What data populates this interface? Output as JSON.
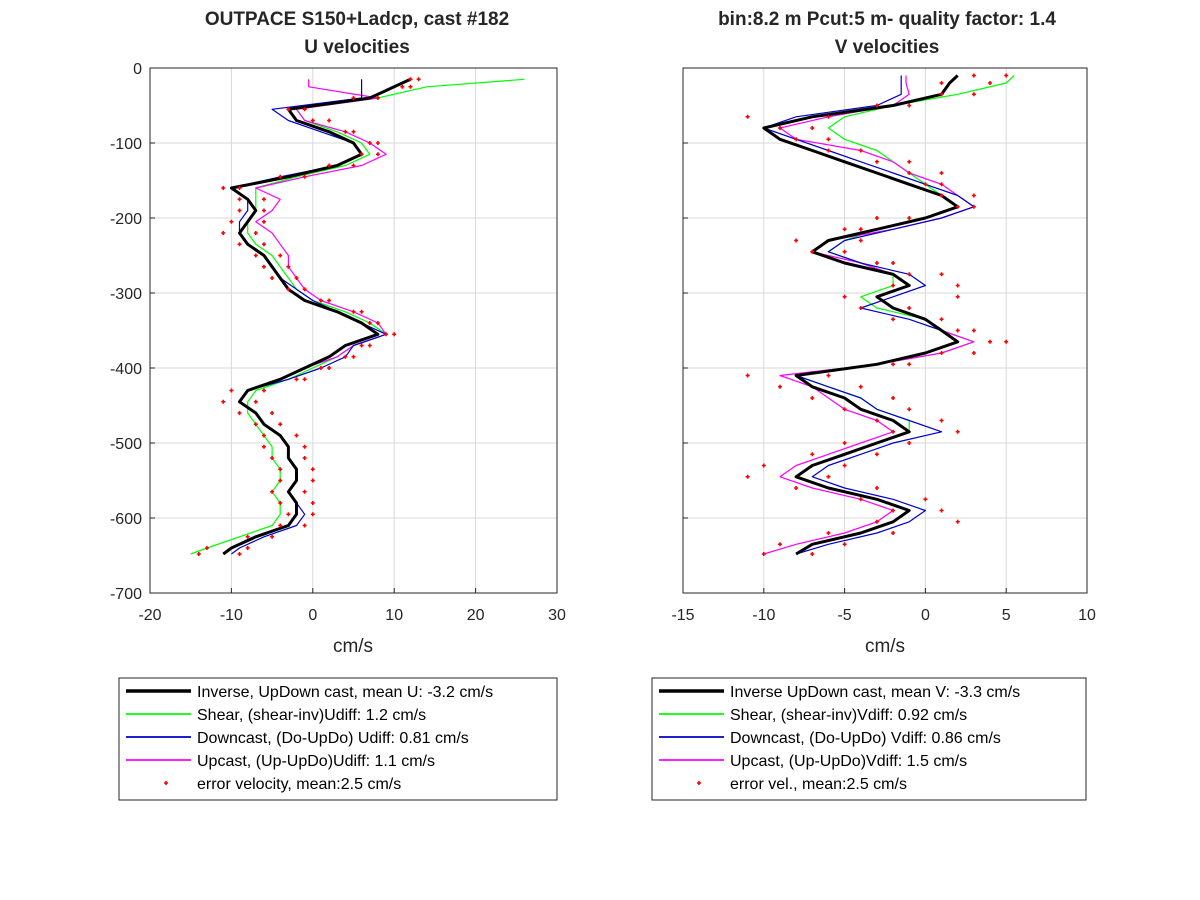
{
  "colors": {
    "inverse": "#000000",
    "shear": "#00ff00",
    "downcast": "#0000cc",
    "upcast": "#ff00ff",
    "error": "#ff0000",
    "grid": "#d9d9d9"
  },
  "chart_data": [
    {
      "type": "line",
      "title": [
        "OUTPACE S150+Ladcp, cast #182",
        "U velocities"
      ],
      "xlabel": "cm/s",
      "ylabel": "",
      "xlim": [
        -20,
        30
      ],
      "ylim": [
        -700,
        0
      ],
      "xticks": [
        "-20",
        "-10",
        "0",
        "10",
        "20",
        "30"
      ],
      "yticks": [
        "0",
        "-100",
        "-200",
        "-300",
        "-400",
        "-500",
        "-600",
        "-700"
      ],
      "grid": true,
      "legend_position": "below",
      "legend": [
        "Inverse, UpDown cast, mean U:  -3.2 cm/s",
        "Shear, (shear-inv)Udiff:  1.2 cm/s",
        "Downcast, (Do-UpDo) Udiff:  0.81 cm/s",
        "Upcast, (Up-UpDo)Udiff:  1.1 cm/s",
        "error velocity, mean:2.5 cm/s"
      ],
      "depth": [
        -15,
        -25,
        -40,
        -55,
        -70,
        -85,
        -100,
        -115,
        -130,
        -145,
        -160,
        -175,
        -190,
        -205,
        -220,
        -235,
        -250,
        -265,
        -280,
        -295,
        -310,
        -325,
        -340,
        -355,
        -370,
        -385,
        -400,
        -415,
        -430,
        -445,
        -460,
        -475,
        -490,
        -505,
        -520,
        -535,
        -550,
        -565,
        -580,
        -595,
        -610,
        -625,
        -640,
        -648
      ],
      "series": [
        {
          "key": "inverse",
          "values": [
            12,
            10,
            7,
            -3,
            -2,
            2,
            5,
            6,
            3,
            -3,
            -10,
            -8,
            -7,
            -8,
            -9,
            -8,
            -6,
            -5,
            -4,
            -3,
            -1,
            3,
            6,
            8,
            4,
            2,
            -1,
            -4,
            -8,
            -9,
            -7,
            -6,
            -4,
            -3,
            -3,
            -2,
            -2,
            -3,
            -2,
            -2,
            -3,
            -7,
            -10,
            -11
          ]
        },
        {
          "key": "shear",
          "values": [
            26,
            14,
            8,
            -2,
            -1,
            3,
            6,
            7,
            4,
            -2,
            -7,
            -7,
            -7,
            -8,
            -8,
            -7,
            -5,
            -4,
            -3,
            -2,
            0,
            4,
            7,
            9,
            5,
            3,
            0,
            -3,
            -7,
            -8,
            -8,
            -7,
            -6,
            -5,
            -5,
            -4,
            -4,
            -5,
            -4,
            -4,
            -5,
            -9,
            -13,
            -15
          ]
        },
        {
          "key": "downcast",
          "values": [
            6,
            6,
            6,
            -5,
            -3,
            1,
            5,
            6,
            3,
            -4,
            -10,
            -8,
            -8,
            -9,
            -9,
            -8,
            -6,
            -5,
            -4,
            -2,
            0,
            3,
            6,
            9,
            5,
            4,
            1,
            -3,
            -8,
            -9,
            -7,
            -6,
            -4,
            -3,
            -3,
            -2,
            -2,
            -3,
            -2,
            -1,
            -2,
            -6,
            -9,
            -10
          ]
        },
        {
          "key": "upcast",
          "values": [
            -0.5,
            -0.5,
            8,
            -2,
            -1,
            4,
            7,
            9,
            6,
            -1,
            -7,
            -4,
            -5,
            -7,
            -5,
            -4,
            -3,
            -3,
            -2,
            -1,
            1,
            5,
            8,
            9,
            5,
            3,
            -1,
            -4,
            -8,
            -9,
            -7,
            -6,
            -4,
            -3,
            -3,
            -2,
            -2,
            -3,
            -2,
            -2,
            -3,
            -7,
            -10,
            -11
          ]
        },
        {
          "key": "error",
          "values": [
            12,
            11,
            5,
            -3,
            0,
            4,
            7,
            8,
            5,
            -1,
            -11,
            -9,
            -9,
            -10,
            -11,
            -9,
            -7,
            -6,
            -5,
            -3,
            1,
            5,
            8,
            10,
            6,
            4,
            1,
            -2,
            -10,
            -11,
            -9,
            -7,
            -6,
            -6,
            -5,
            -4,
            -4,
            -5,
            -4,
            -3,
            -4,
            -8,
            -13,
            -14
          ]
        },
        {
          "key": "error2",
          "values": [
            13,
            12,
            8,
            -1,
            2,
            5,
            8,
            6,
            2,
            -4,
            -9,
            -6,
            -6,
            -6,
            -7,
            -6,
            -4,
            -3,
            -2,
            -1,
            2,
            6,
            7,
            9,
            7,
            5,
            2,
            -1,
            -6,
            -7,
            -5,
            -4,
            -2,
            -1,
            -1,
            0,
            0,
            -1,
            0,
            0,
            -1,
            -5,
            -8,
            -9
          ]
        }
      ]
    },
    {
      "type": "line",
      "title": [
        "bin:8.2 m  Pcut:5 m- quality factor:  1.4",
        "V velocities"
      ],
      "xlabel": "cm/s",
      "ylabel": "",
      "xlim": [
        -15,
        10
      ],
      "ylim": [
        -700,
        0
      ],
      "xticks": [
        "-15",
        "-10",
        "-5",
        "0",
        "5",
        "10"
      ],
      "yticks": [],
      "grid": true,
      "legend_position": "below",
      "legend": [
        "Inverse UpDown cast, mean V:  -3.3 cm/s",
        "Shear, (shear-inv)Vdiff:  0.92 cm/s",
        "Downcast, (Do-UpDo) Vdiff:  0.86 cm/s",
        "Upcast, (Up-UpDo)Vdiff:  1.5 cm/s",
        "error vel., mean:2.5 cm/s"
      ],
      "depth": [
        -10,
        -20,
        -35,
        -50,
        -65,
        -80,
        -95,
        -110,
        -125,
        -140,
        -155,
        -170,
        -185,
        -200,
        -215,
        -230,
        -245,
        -260,
        -275,
        -290,
        -305,
        -320,
        -335,
        -350,
        -365,
        -380,
        -395,
        -410,
        -425,
        -440,
        -455,
        -470,
        -485,
        -500,
        -515,
        -530,
        -545,
        -560,
        -575,
        -590,
        -605,
        -620,
        -635,
        -648
      ],
      "series": [
        {
          "key": "inverse",
          "values": [
            2,
            1.5,
            1,
            -2,
            -7,
            -10,
            -9,
            -7,
            -5,
            -3,
            -1,
            1,
            2,
            0,
            -3,
            -6,
            -7,
            -5,
            -2,
            -1,
            -3,
            -2,
            0,
            1,
            2,
            0,
            -3,
            -8,
            -7,
            -5,
            -4,
            -2,
            -1,
            -3,
            -5,
            -7,
            -8,
            -6,
            -3,
            -1,
            -2,
            -4,
            -7,
            -8
          ]
        },
        {
          "key": "shear",
          "values": [
            5.5,
            5,
            2,
            -2,
            -5,
            -6,
            -5,
            -3,
            -2,
            -1,
            0,
            1,
            2,
            0,
            -3,
            -5,
            -6,
            -4,
            -2,
            -2,
            -4,
            -3,
            0,
            1,
            3,
            1,
            -3,
            -8,
            -6,
            -4,
            -3,
            -1,
            -1,
            -3,
            -5,
            -7,
            -8,
            -6,
            -3,
            -1,
            -2,
            -4,
            -7,
            -8
          ]
        },
        {
          "key": "downcast",
          "values": [
            -1.5,
            -1.5,
            -1.5,
            -3,
            -8,
            -10,
            -8,
            -6,
            -4,
            -2,
            0,
            2,
            3,
            1,
            -2,
            -5,
            -6,
            -4,
            -1,
            0,
            -2,
            -4,
            -1,
            1,
            2,
            0,
            -3,
            -8,
            -6,
            -4,
            -3,
            -1,
            1,
            -2,
            -4,
            -6,
            -7,
            -5,
            -2,
            0,
            -1,
            -3,
            -6,
            -8
          ]
        },
        {
          "key": "upcast",
          "values": [
            -1.2,
            -1.2,
            -1,
            -2,
            -6,
            -9,
            -8,
            -4,
            -2,
            -1,
            1,
            2,
            3,
            1,
            -2,
            -6,
            -7,
            -4,
            -2,
            -1,
            -3,
            -2,
            0,
            1,
            3,
            1,
            -3,
            -9,
            -7,
            -6,
            -5,
            -3,
            -2,
            -4,
            -6,
            -8,
            -9,
            -7,
            -4,
            -2,
            -3,
            -5,
            -8,
            -10
          ]
        },
        {
          "key": "error",
          "values": [
            3,
            1,
            3,
            -3,
            -11,
            -9,
            -8,
            -6,
            -3,
            -1,
            1,
            3,
            3,
            -1,
            -5,
            -8,
            -7,
            -3,
            -1,
            -2,
            -5,
            -4,
            -2,
            2,
            4,
            1,
            -2,
            -11,
            -9,
            -7,
            -5,
            -3,
            -2,
            -5,
            -7,
            -10,
            -11,
            -8,
            -4,
            -2,
            -3,
            -6,
            -9,
            -10
          ]
        },
        {
          "key": "error2",
          "values": [
            5,
            4,
            1,
            -1,
            -6,
            -7,
            -6,
            -4,
            -1,
            1,
            0,
            1,
            2,
            -3,
            -4,
            -4,
            -5,
            -2,
            1,
            2,
            2,
            -1,
            1,
            3,
            5,
            3,
            -1,
            -6,
            -4,
            -2,
            -1,
            1,
            2,
            -1,
            -3,
            -5,
            -6,
            -3,
            0,
            1,
            2,
            -2,
            -5,
            -7
          ]
        }
      ]
    }
  ]
}
